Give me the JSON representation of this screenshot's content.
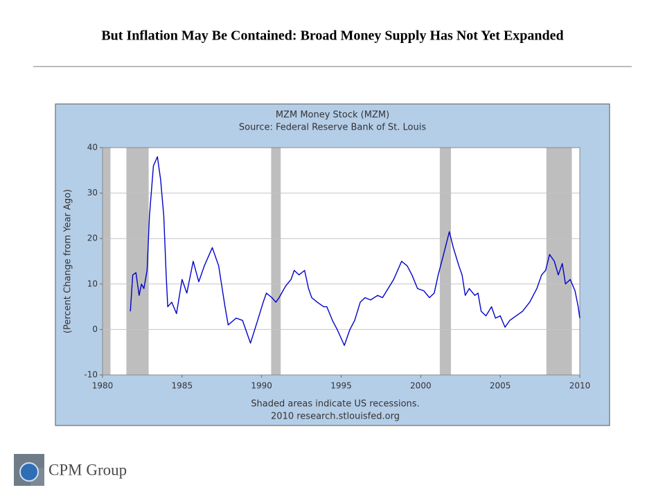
{
  "slide_title": "But Inflation May Be Contained: Broad Money Supply Has Not Yet Expanded",
  "footer": {
    "logo_text": "CPM Group"
  },
  "chart_data": {
    "type": "line",
    "title": "MZM Money Stock (MZM)",
    "subtitle": "Source: Federal Reserve Bank of St. Louis",
    "ylabel": "(Percent Change from Year Ago)",
    "notes": [
      "Shaded areas indicate US recessions.",
      "2010 research.stlouisfed.org"
    ],
    "color": "#0000cc",
    "grid": true,
    "xlim": [
      1980,
      2010
    ],
    "xticks": [
      1980,
      1985,
      1990,
      1995,
      2000,
      2005,
      2010
    ],
    "ylim": [
      -10,
      40
    ],
    "yticks": [
      -10,
      0,
      10,
      20,
      30,
      40
    ],
    "recessions": [
      [
        1980.0,
        1980.5
      ],
      [
        1981.5,
        1982.9
      ],
      [
        1990.6,
        1991.2
      ],
      [
        2001.2,
        2001.9
      ],
      [
        2007.9,
        2009.5
      ]
    ],
    "x": [
      1981.75,
      1981.9,
      1982.1,
      1982.3,
      1982.45,
      1982.6,
      1982.8,
      1982.95,
      1983.2,
      1983.45,
      1983.65,
      1983.85,
      1984.0,
      1984.1,
      1984.35,
      1984.65,
      1985.0,
      1985.3,
      1985.7,
      1986.05,
      1986.4,
      1986.9,
      1987.3,
      1987.7,
      1987.9,
      1988.4,
      1988.8,
      1989.1,
      1989.3,
      1989.75,
      1990.1,
      1990.3,
      1990.65,
      1990.9,
      1991.1,
      1991.5,
      1991.85,
      1992.05,
      1992.35,
      1992.7,
      1992.95,
      1993.15,
      1993.5,
      1993.9,
      1994.1,
      1994.45,
      1994.75,
      1995.2,
      1995.55,
      1995.85,
      1996.2,
      1996.5,
      1996.85,
      1997.3,
      1997.6,
      1997.95,
      1998.3,
      1998.8,
      1999.15,
      1999.45,
      1999.8,
      2000.2,
      2000.55,
      2000.85,
      2001.1,
      2001.4,
      2001.8,
      2002.05,
      2002.4,
      2002.6,
      2002.8,
      2003.05,
      2003.4,
      2003.6,
      2003.8,
      2004.1,
      2004.45,
      2004.7,
      2005.0,
      2005.3,
      2005.6,
      2006.0,
      2006.4,
      2006.85,
      2007.3,
      2007.6,
      2007.85,
      2008.1,
      2008.4,
      2008.65,
      2008.9,
      2009.1,
      2009.4,
      2009.7,
      2009.9,
      2010.0
    ],
    "values": [
      4,
      12,
      12.5,
      7.5,
      10,
      9,
      13,
      25,
      36,
      38,
      33,
      25,
      12,
      5,
      6,
      3.5,
      11,
      8,
      15,
      10.5,
      14,
      18,
      14,
      5,
      1,
      2.5,
      2,
      -1,
      -3,
      2,
      6,
      8,
      7,
      6,
      7,
      9.5,
      11,
      13,
      12,
      13,
      9,
      7,
      6,
      5,
      5,
      2,
      0,
      -3.5,
      0,
      2,
      6,
      7,
      6.5,
      7.5,
      7,
      9,
      11,
      15,
      14,
      12,
      9,
      8.5,
      7,
      8,
      12,
      16,
      21.5,
      18,
      14,
      12,
      7.5,
      9,
      7.5,
      8,
      4,
      3,
      5,
      2.5,
      3,
      0.5,
      2,
      3,
      4,
      6,
      9,
      12,
      13,
      16.5,
      15,
      12,
      14.5,
      10,
      11,
      8.5,
      5,
      2.5
    ]
  }
}
